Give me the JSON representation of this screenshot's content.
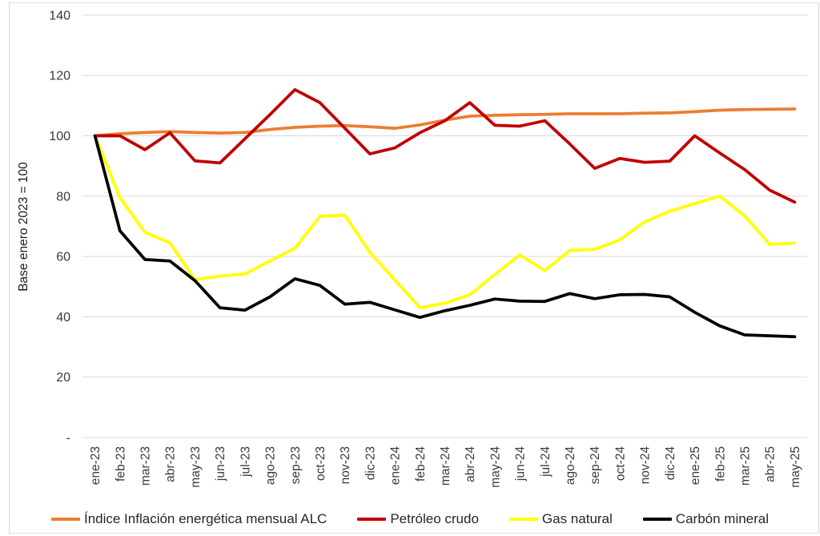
{
  "chart_data": {
    "type": "line",
    "ylabel": "Base enero 2023 = 100",
    "ylim": [
      0,
      140
    ],
    "grid": true,
    "legend_position": "bottom",
    "x_tick_rotation": 90,
    "y_ticks": [
      {
        "value": 140,
        "label": "140"
      },
      {
        "value": 120,
        "label": "120"
      },
      {
        "value": 100,
        "label": "100"
      },
      {
        "value": 80,
        "label": "80"
      },
      {
        "value": 60,
        "label": "60"
      },
      {
        "value": 40,
        "label": "40"
      },
      {
        "value": 20,
        "label": "20"
      },
      {
        "value": 0,
        "label": "-"
      }
    ],
    "categories": [
      "ene-23",
      "feb-23",
      "mar-23",
      "abr-23",
      "may-23",
      "jun-23",
      "jul-23",
      "ago-23",
      "sep-23",
      "oct-23",
      "nov-23",
      "dic-23",
      "ene-24",
      "feb-24",
      "mar-24",
      "abr-24",
      "may-24",
      "jun-24",
      "jul-24",
      "ago-24",
      "sep-24",
      "oct-24",
      "nov-24",
      "dic-24",
      "ene-25",
      "feb-25",
      "mar-25",
      "abr-25",
      "may-25"
    ],
    "series": [
      {
        "id": "indice-inflacion-energetica-alc",
        "name": "Índice Inflación energética mensual ALC",
        "color": "#ED7D31",
        "values": [
          100,
          100.7,
          101.1,
          101.4,
          101.1,
          100.9,
          101.1,
          102.1,
          102.8,
          103.2,
          103.4,
          103,
          102.5,
          103.6,
          105.2,
          106.5,
          106.8,
          107,
          107.1,
          107.3,
          107.3,
          107.3,
          107.5,
          107.6,
          108,
          108.5,
          108.7,
          108.8,
          108.9
        ]
      },
      {
        "id": "petroleo-crudo",
        "name": "Petróleo crudo",
        "color": "#C00000",
        "values": [
          100,
          100,
          95.4,
          101,
          91.7,
          91,
          99,
          107,
          115.3,
          111,
          102.5,
          94,
          96,
          101,
          105,
          111,
          103.5,
          103.2,
          105,
          97.3,
          89.2,
          92.5,
          91.2,
          91.6,
          100,
          94.3,
          88.8,
          82,
          78
        ]
      },
      {
        "id": "gas-natural",
        "name": "Gas natural",
        "color": "#FFFF00",
        "values": [
          100,
          79.5,
          68,
          64.5,
          52.3,
          53.5,
          54.2,
          58.5,
          62.7,
          73.3,
          73.7,
          61.4,
          52.2,
          43,
          44.5,
          47.3,
          54,
          60.5,
          55.3,
          62,
          62.4,
          65.5,
          71.5,
          75,
          77.5,
          80,
          73.5,
          64,
          64.4
        ]
      },
      {
        "id": "carbon-mineral",
        "name": "Carbón mineral",
        "color": "#000000",
        "values": [
          100,
          68.5,
          59,
          58.5,
          52,
          43,
          42.2,
          46.6,
          52.6,
          50.4,
          44.2,
          44.8,
          42.3,
          39.8,
          42,
          43.8,
          45.9,
          45.2,
          45.1,
          47.7,
          46,
          47.3,
          47.4,
          46.6,
          41.5,
          37,
          34,
          33.7,
          33.4
        ]
      }
    ]
  }
}
